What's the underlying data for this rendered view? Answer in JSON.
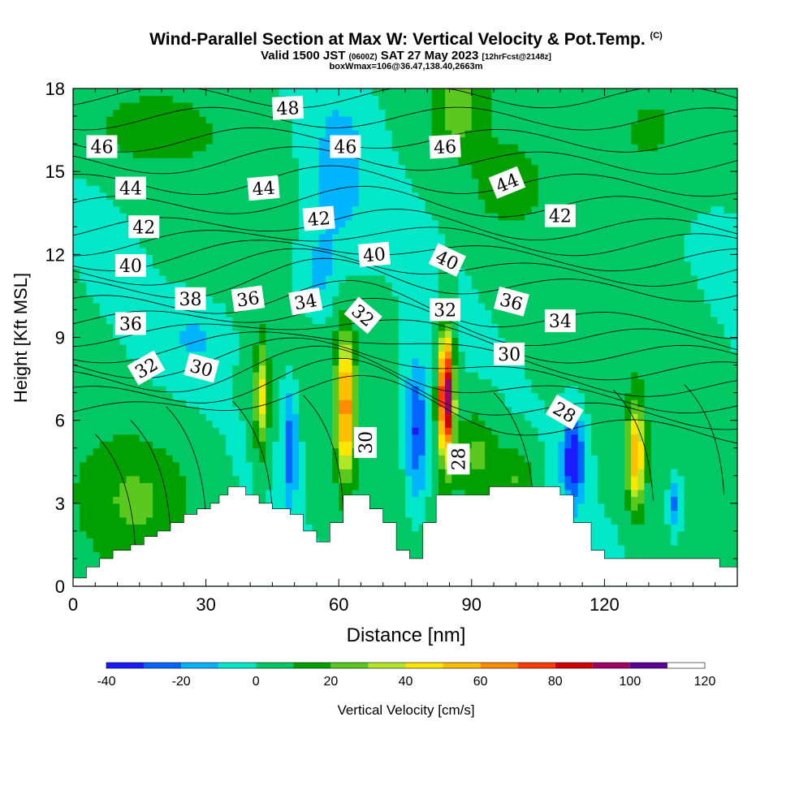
{
  "title": {
    "main": "Wind-Parallel Section at Max W: Vertical Velocity & Pot.Temp.",
    "copyright": "(C)",
    "valid_prefix": "Valid 1500 JST",
    "valid_utc": "(0600Z)",
    "valid_date": "SAT 27 May 2023",
    "forecast": "[12hrFcst@2148z]",
    "box": "boxWmax=106@36.47,138.40,2663m"
  },
  "colors": {
    "ramp": [
      "#1a1aff",
      "#0066ff",
      "#00b4ff",
      "#00e8c8",
      "#00c864",
      "#00a000",
      "#5ac81e",
      "#b4e628",
      "#ffe600",
      "#ffbe00",
      "#ff8c00",
      "#ff3c00",
      "#d20000",
      "#a00064",
      "#5a0096"
    ],
    "terrain": "#ffffff",
    "contour": "#000000"
  },
  "chart_data": {
    "type": "heatmap",
    "xlabel": "Distance [nm]",
    "ylabel": "Height [Kft MSL]",
    "xlim": [
      0,
      150
    ],
    "ylim": [
      0,
      18
    ],
    "xticks": [
      0,
      30,
      60,
      90,
      120
    ],
    "yticks": [
      0,
      3,
      6,
      9,
      12,
      15,
      18
    ],
    "colorbar": {
      "label": "Vertical Velocity [cm/s]",
      "min": -40,
      "max": 120,
      "step": 10,
      "tick_values": [
        -40,
        -20,
        0,
        20,
        40,
        60,
        80,
        100,
        120
      ]
    },
    "theta_contours": {
      "unit": "potential temperature labels",
      "labels": [
        {
          "text": "48",
          "x": 48.5,
          "y": 17.3,
          "angle": -3
        },
        {
          "text": "46",
          "x": 6.5,
          "y": 15.9,
          "angle": 0
        },
        {
          "text": "46",
          "x": 61.5,
          "y": 15.9,
          "angle": 0
        },
        {
          "text": "46",
          "x": 84,
          "y": 15.9,
          "angle": -3
        },
        {
          "text": "44",
          "x": 13,
          "y": 14.4,
          "angle": 0
        },
        {
          "text": "44",
          "x": 43,
          "y": 14.4,
          "angle": -5
        },
        {
          "text": "44",
          "x": 98,
          "y": 14.6,
          "angle": -22
        },
        {
          "text": "42",
          "x": 16,
          "y": 13.0,
          "angle": 0
        },
        {
          "text": "42",
          "x": 55.5,
          "y": 13.3,
          "angle": -5
        },
        {
          "text": "42",
          "x": 110,
          "y": 13.4,
          "angle": 0
        },
        {
          "text": "40",
          "x": 13,
          "y": 11.6,
          "angle": 0
        },
        {
          "text": "40",
          "x": 68,
          "y": 12.0,
          "angle": -5
        },
        {
          "text": "40",
          "x": 84.5,
          "y": 11.8,
          "angle": 25
        },
        {
          "text": "38",
          "x": 26.5,
          "y": 10.4,
          "angle": 0
        },
        {
          "text": "36",
          "x": 39.5,
          "y": 10.4,
          "angle": -8
        },
        {
          "text": "36",
          "x": 13,
          "y": 9.5,
          "angle": 0
        },
        {
          "text": "36",
          "x": 99,
          "y": 10.3,
          "angle": 15
        },
        {
          "text": "34",
          "x": 52.5,
          "y": 10.3,
          "angle": -10
        },
        {
          "text": "34",
          "x": 110,
          "y": 9.6,
          "angle": 0
        },
        {
          "text": "32",
          "x": 65.5,
          "y": 9.8,
          "angle": 40
        },
        {
          "text": "32",
          "x": 84,
          "y": 10.0,
          "angle": 0
        },
        {
          "text": "32",
          "x": 16.5,
          "y": 7.9,
          "angle": -30
        },
        {
          "text": "30",
          "x": 29,
          "y": 7.9,
          "angle": 15
        },
        {
          "text": "30",
          "x": 98.5,
          "y": 8.4,
          "angle": 0
        },
        {
          "text": "30",
          "x": 66,
          "y": 5.2,
          "angle": -90
        },
        {
          "text": "28",
          "x": 111,
          "y": 6.3,
          "angle": 30
        },
        {
          "text": "28",
          "x": 87,
          "y": 4.6,
          "angle": -90
        }
      ]
    },
    "w_features": [
      {
        "x": 61.5,
        "y": 6.5,
        "sx": 2.2,
        "sy": 2.6,
        "peak": 62
      },
      {
        "x": 84.3,
        "y": 6.9,
        "sx": 1.7,
        "sy": 2.2,
        "peak": 104
      },
      {
        "x": 127,
        "y": 4.7,
        "sx": 2.0,
        "sy": 1.9,
        "peak": 56
      },
      {
        "x": 42.5,
        "y": 6.8,
        "sx": 1.5,
        "sy": 1.9,
        "peak": 44
      },
      {
        "x": 15,
        "y": 3.2,
        "sx": 13,
        "sy": 2.4,
        "peak": 18
      },
      {
        "x": 91,
        "y": 4.8,
        "sx": 5,
        "sy": 1.6,
        "peak": 22
      },
      {
        "x": 100,
        "y": 3.9,
        "sx": 4,
        "sy": 1.3,
        "peak": 20
      },
      {
        "x": 87,
        "y": 17.2,
        "sx": 6,
        "sy": 1.6,
        "peak": 22
      },
      {
        "x": 98,
        "y": 14.5,
        "sx": 7,
        "sy": 1.4,
        "peak": 14
      },
      {
        "x": 17,
        "y": 16.5,
        "sx": 16,
        "sy": 1.3,
        "peak": 12
      },
      {
        "x": 130,
        "y": 16.5,
        "sx": 12,
        "sy": 2.5,
        "peak": 12
      },
      {
        "x": 49,
        "y": 5.0,
        "sx": 1.8,
        "sy": 2.2,
        "peak": -28
      },
      {
        "x": 77.5,
        "y": 5.6,
        "sx": 2.5,
        "sy": 2.6,
        "peak": -34
      },
      {
        "x": 113,
        "y": 4.6,
        "sx": 2.5,
        "sy": 1.6,
        "peak": -42
      },
      {
        "x": 136,
        "y": 3.0,
        "sx": 1.4,
        "sy": 1.0,
        "peak": -26
      },
      {
        "x": 60,
        "y": 15.0,
        "sx": 6,
        "sy": 2.6,
        "peak": -18
      },
      {
        "x": 55,
        "y": 11.3,
        "sx": 5,
        "sy": 1.6,
        "peak": -15
      },
      {
        "x": 28,
        "y": 9.0,
        "sx": 7,
        "sy": 1.2,
        "peak": -12
      }
    ],
    "terrain_profile": {
      "x": [
        0,
        3,
        6,
        9,
        13,
        16,
        19,
        22,
        25,
        28,
        31,
        33,
        35,
        39,
        42,
        45,
        49,
        52,
        55,
        58,
        61,
        64,
        67,
        70,
        73,
        76,
        79,
        82,
        85,
        88,
        91,
        94,
        97,
        100,
        103,
        106,
        110,
        113,
        117,
        120,
        123,
        128,
        133,
        140,
        146,
        150
      ],
      "y": [
        0.3,
        0.7,
        1.0,
        1.3,
        1.5,
        1.8,
        2.0,
        2.3,
        2.6,
        2.8,
        3.0,
        3.3,
        3.6,
        3.3,
        3.0,
        2.8,
        2.6,
        2.0,
        1.6,
        2.3,
        3.3,
        3.3,
        2.8,
        2.3,
        1.3,
        1.0,
        2.3,
        3.3,
        3.3,
        3.3,
        3.3,
        3.6,
        3.6,
        3.6,
        3.6,
        3.6,
        3.3,
        2.3,
        1.3,
        1.0,
        1.0,
        1.0,
        1.0,
        1.0,
        0.7,
        0.7
      ]
    }
  }
}
